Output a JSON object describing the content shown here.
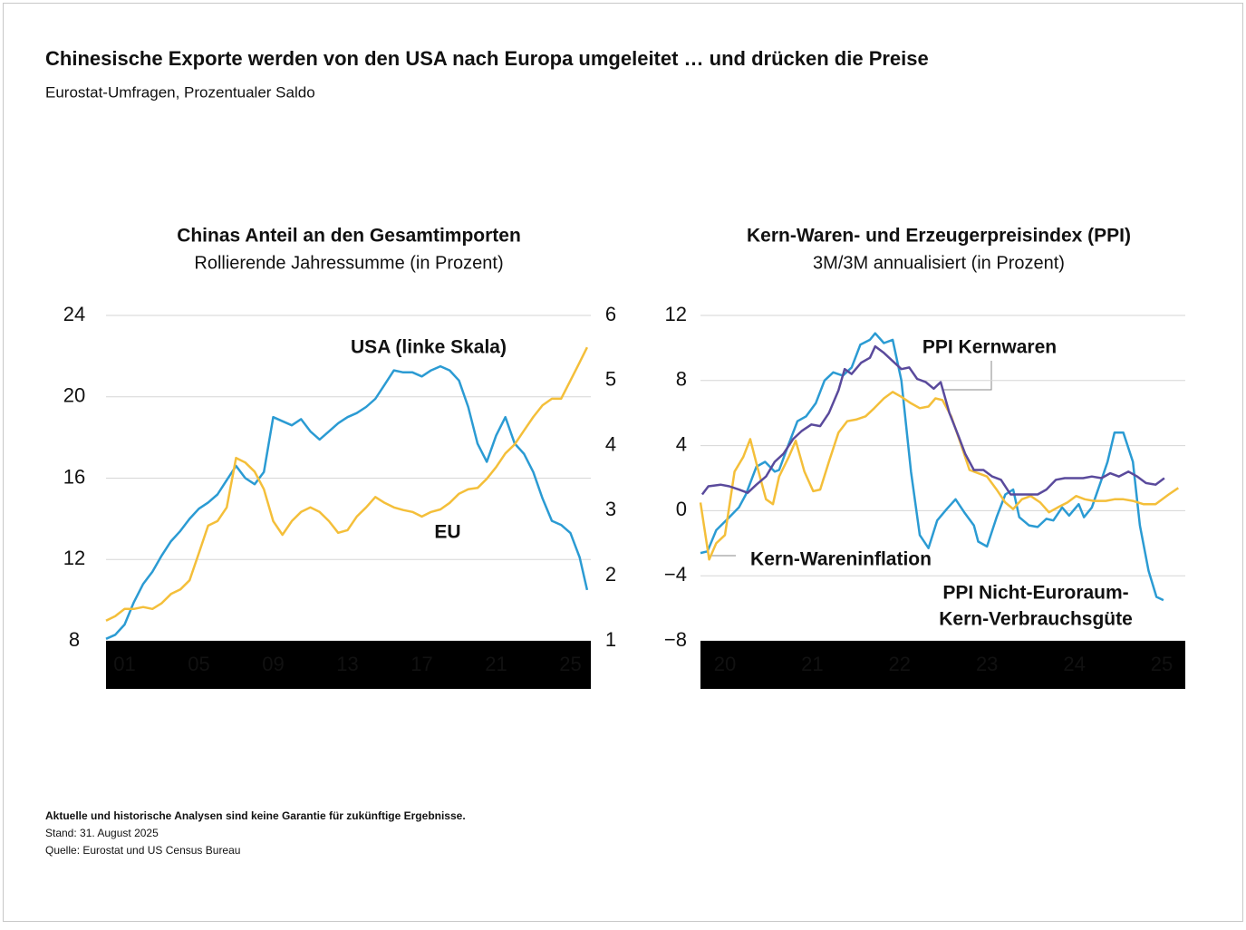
{
  "title": "Chinesische Exporte werden von den USA nach Europa umgeleitet … und drücken die Preise",
  "subtitle": "Eurostat-Umfragen, Prozentualer Saldo",
  "chart_data": [
    {
      "type": "line",
      "title": "Chinas Anteil an den Gesamtimporten",
      "subtitle": "Rollierende Jahressumme (in Prozent)",
      "x": [
        0,
        0.5,
        1,
        1.5,
        2,
        2.5,
        3,
        3.5,
        4,
        4.5,
        5,
        5.5,
        6,
        6.5,
        7,
        7.5,
        8,
        8.5,
        9,
        9.5,
        10,
        10.5,
        11,
        11.5,
        12,
        12.5,
        13,
        13.5,
        14,
        14.5,
        15,
        15.5,
        16,
        16.5,
        17,
        17.5,
        18,
        18.5,
        19,
        19.5,
        20,
        20.5,
        21,
        21.5,
        22,
        22.5,
        23,
        23.5,
        24,
        24.5,
        25,
        25.5,
        25.9
      ],
      "xlim": [
        0,
        26.1
      ],
      "xticks": [
        {
          "value": 1,
          "label": "01"
        },
        {
          "value": 5,
          "label": "05"
        },
        {
          "value": 9,
          "label": "09"
        },
        13,
        17,
        21,
        25
      ],
      "ylim": [
        8,
        24
      ],
      "yticks": [
        8,
        12,
        16,
        20,
        24
      ],
      "y2lim": [
        1,
        6
      ],
      "y2ticks": [
        1,
        2,
        3,
        4,
        5,
        6
      ],
      "grid": true,
      "series": [
        {
          "name": "USA (linke Skala)",
          "color": "#2b9bd3",
          "values": [
            8.1,
            8.3,
            8.8,
            9.9,
            10.8,
            11.4,
            12.2,
            12.9,
            13.4,
            14.0,
            14.5,
            14.8,
            15.2,
            15.9,
            16.6,
            16.0,
            15.7,
            16.3,
            19.0,
            18.8,
            18.6,
            18.9,
            18.3,
            17.9,
            18.3,
            18.7,
            19.0,
            19.2,
            19.5,
            19.9,
            20.6,
            21.3,
            21.2,
            21.2,
            21.0,
            21.3,
            21.5,
            21.3,
            20.8,
            19.5,
            17.7,
            16.8,
            18.1,
            19.0,
            17.7,
            17.2,
            16.3,
            15.0,
            13.9,
            13.7,
            13.3,
            12.1,
            10.5
          ]
        },
        {
          "name": "EU",
          "color": "#f4bf3a",
          "axis": "y2",
          "values": [
            1.31,
            1.38,
            1.49,
            1.49,
            1.52,
            1.49,
            1.58,
            1.72,
            1.79,
            1.93,
            2.35,
            2.77,
            2.84,
            3.05,
            3.81,
            3.74,
            3.6,
            3.33,
            2.84,
            2.63,
            2.84,
            2.98,
            3.05,
            2.98,
            2.84,
            2.66,
            2.7,
            2.91,
            3.05,
            3.21,
            3.12,
            3.05,
            3.01,
            2.98,
            2.91,
            2.98,
            3.02,
            3.12,
            3.26,
            3.33,
            3.35,
            3.49,
            3.67,
            3.88,
            4.02,
            4.23,
            4.44,
            4.62,
            4.72,
            4.72,
            5.0,
            5.28,
            5.51
          ]
        }
      ]
    },
    {
      "type": "line",
      "title": "Kern-Waren- und Erzeugerpreisindex (PPI)",
      "subtitle": "3M/3M annualisiert (in Prozent)",
      "xlim": [
        19.72,
        25.27
      ],
      "xticks": [
        20,
        21,
        22,
        23,
        24,
        25
      ],
      "ylim": [
        -8,
        12
      ],
      "yticks": [
        {
          "value": -8,
          "label": "−8"
        },
        {
          "value": -4,
          "label": "−4"
        },
        0,
        4,
        8,
        12
      ],
      "grid": true,
      "series": [
        {
          "name": [
            "PPI Nicht-Euroraum-",
            "Kern-Verbrauchsgüte"
          ],
          "color": "#2b9bd3",
          "x": [
            19.72,
            19.8,
            19.9,
            20.05,
            20.16,
            20.24,
            20.36,
            20.46,
            20.57,
            20.62,
            20.73,
            20.83,
            20.93,
            21.04,
            21.14,
            21.24,
            21.35,
            21.45,
            21.55,
            21.66,
            21.72,
            21.82,
            21.92,
            22.02,
            22.13,
            22.23,
            22.33,
            22.43,
            22.54,
            22.64,
            22.74,
            22.85,
            22.9,
            23.0,
            23.11,
            23.21,
            23.3,
            23.37,
            23.48,
            23.58,
            23.68,
            23.76,
            23.86,
            23.94,
            24.05,
            24.11,
            24.2,
            24.31,
            24.38,
            24.46,
            24.56,
            24.67,
            24.75,
            24.85,
            24.94,
            25.02
          ],
          "values": [
            -2.6,
            -2.5,
            -1.2,
            -0.4,
            0.2,
            1.0,
            2.7,
            3.0,
            2.4,
            2.5,
            4.1,
            5.5,
            5.8,
            6.6,
            8.0,
            8.5,
            8.3,
            8.8,
            10.2,
            10.5,
            10.9,
            10.3,
            10.5,
            8.0,
            2.4,
            -1.5,
            -2.3,
            -0.6,
            0.1,
            0.7,
            -0.1,
            -0.9,
            -1.9,
            -2.2,
            -0.4,
            1.0,
            1.3,
            -0.4,
            -0.9,
            -1.0,
            -0.5,
            -0.6,
            0.2,
            -0.3,
            0.4,
            -0.4,
            0.2,
            1.9,
            3.0,
            4.8,
            4.8,
            3.0,
            -0.9,
            -3.7,
            -5.3,
            -5.5
          ]
        },
        {
          "name": "Kern-Wareninflation",
          "color": "#f4bf3a",
          "x": [
            19.72,
            19.82,
            19.9,
            20.0,
            20.11,
            20.21,
            20.29,
            20.37,
            20.47,
            20.55,
            20.62,
            20.73,
            20.81,
            20.91,
            21.01,
            21.09,
            21.19,
            21.3,
            21.4,
            21.5,
            21.61,
            21.71,
            21.82,
            21.92,
            22.02,
            22.13,
            22.23,
            22.33,
            22.41,
            22.49,
            22.59,
            22.7,
            22.8,
            22.9,
            23.0,
            23.11,
            23.21,
            23.3,
            23.4,
            23.5,
            23.61,
            23.71,
            23.81,
            23.92,
            24.02,
            24.12,
            24.22,
            24.36,
            24.46,
            24.56,
            24.67,
            24.79,
            24.93,
            25.08,
            25.19
          ],
          "values": [
            0.5,
            -3.0,
            -2.0,
            -1.5,
            2.4,
            3.3,
            4.4,
            2.7,
            0.7,
            0.4,
            2.1,
            3.3,
            4.3,
            2.4,
            1.2,
            1.3,
            3.0,
            4.8,
            5.5,
            5.6,
            5.8,
            6.3,
            6.9,
            7.3,
            7.0,
            6.6,
            6.3,
            6.4,
            6.9,
            6.8,
            5.8,
            4.1,
            2.5,
            2.3,
            2.1,
            1.3,
            0.5,
            0.1,
            0.7,
            0.9,
            0.5,
            -0.1,
            0.2,
            0.5,
            0.9,
            0.7,
            0.6,
            0.6,
            0.7,
            0.7,
            0.6,
            0.4,
            0.4,
            1.0,
            1.4
          ]
        },
        {
          "name": "PPI Kernwaren",
          "color": "#5a4a9c",
          "x": [
            19.74,
            19.81,
            19.95,
            20.05,
            20.16,
            20.26,
            20.36,
            20.47,
            20.57,
            20.67,
            20.78,
            20.88,
            20.99,
            21.09,
            21.19,
            21.3,
            21.37,
            21.45,
            21.56,
            21.66,
            21.72,
            21.82,
            21.92,
            22.02,
            22.11,
            22.2,
            22.3,
            22.39,
            22.47,
            22.57,
            22.68,
            22.75,
            22.85,
            22.96,
            23.06,
            23.16,
            23.27,
            23.37,
            23.48,
            23.58,
            23.68,
            23.79,
            23.89,
            23.99,
            24.1,
            24.2,
            24.31,
            24.41,
            24.51,
            24.62,
            24.72,
            24.82,
            24.93,
            25.03
          ],
          "values": [
            1.0,
            1.5,
            1.6,
            1.5,
            1.3,
            1.1,
            1.6,
            2.1,
            3.0,
            3.5,
            4.4,
            4.9,
            5.3,
            5.2,
            6.0,
            7.4,
            8.7,
            8.4,
            9.1,
            9.4,
            10.1,
            9.7,
            9.2,
            8.7,
            8.8,
            8.1,
            7.9,
            7.5,
            7.9,
            6.0,
            4.5,
            3.5,
            2.5,
            2.5,
            2.1,
            1.9,
            1.0,
            1.0,
            1.0,
            1.0,
            1.3,
            1.9,
            2.0,
            2.0,
            2.0,
            2.1,
            2.0,
            2.3,
            2.1,
            2.4,
            2.1,
            1.7,
            1.6,
            2.0
          ]
        }
      ]
    }
  ],
  "notes": [
    "Aktuelle und historische Analysen sind keine Garantie für zukünftige Ergebnisse.",
    "Stand: 31. August 2025",
    "Quelle: Eurostat und US Census Bureau"
  ]
}
